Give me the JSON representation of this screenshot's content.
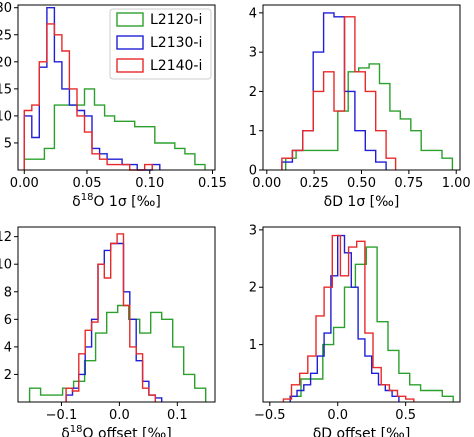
{
  "chart_data": [
    {
      "type": "histogram",
      "xlabel": "δ18O 1σ [‰]",
      "xlim": [
        -0.005,
        0.152
      ],
      "ylim": [
        0,
        30.5
      ],
      "xticks": [
        0.0,
        0.05,
        0.1,
        0.15
      ],
      "xtick_labels": [
        "0.00",
        "0.05",
        "0.10",
        "0.15"
      ],
      "yticks": [
        5,
        10,
        15,
        20,
        25,
        30
      ],
      "ytick_labels": [
        "5",
        "10",
        "15",
        "20",
        "25",
        "30"
      ],
      "legend": {
        "placement": "top-right",
        "entries": [
          "L2120-i",
          "L2130-i",
          "L2140-i"
        ]
      },
      "series": [
        {
          "name": "L2120-i",
          "color": "#2ca02c",
          "edges": [
            0.0,
            0.008,
            0.016,
            0.024,
            0.032,
            0.04,
            0.048,
            0.056,
            0.064,
            0.072,
            0.08,
            0.088,
            0.096,
            0.104,
            0.112,
            0.12,
            0.128,
            0.136,
            0.144
          ],
          "values": [
            2,
            2,
            4,
            12,
            12,
            12,
            15,
            12,
            10,
            9,
            9,
            8,
            8,
            5,
            5,
            4,
            3,
            1
          ]
        },
        {
          "name": "L2130-i",
          "color": "#1f1fd6",
          "edges": [
            0.0,
            0.006,
            0.012,
            0.018,
            0.024,
            0.03,
            0.036,
            0.042,
            0.048,
            0.054,
            0.06,
            0.066,
            0.072,
            0.078,
            0.084,
            0.09,
            0.096,
            0.102,
            0.108
          ],
          "values": [
            10,
            6,
            19,
            30,
            20,
            15,
            12,
            11,
            10,
            4,
            3,
            2,
            2,
            1,
            1,
            0,
            0,
            1
          ]
        },
        {
          "name": "L2140-i",
          "color": "#e8292a",
          "edges": [
            0.0,
            0.006,
            0.012,
            0.018,
            0.024,
            0.03,
            0.036,
            0.042,
            0.048,
            0.054,
            0.06,
            0.066,
            0.072,
            0.078,
            0.084,
            0.09,
            0.096,
            0.102
          ],
          "values": [
            11,
            12,
            20,
            27,
            25,
            22,
            15,
            10,
            7,
            3,
            2,
            1,
            1,
            1,
            0,
            0,
            1
          ]
        }
      ]
    },
    {
      "type": "histogram",
      "xlabel": "δD 1σ [‰]",
      "xlim": [
        -0.02,
        1.02
      ],
      "ylim": [
        0,
        4.2
      ],
      "xticks": [
        0.0,
        0.25,
        0.5,
        0.75,
        1.0
      ],
      "xtick_labels": [
        "0.00",
        "0.25",
        "0.50",
        "0.75",
        "1.00"
      ],
      "yticks": [
        0,
        1,
        2,
        3,
        4
      ],
      "ytick_labels": [
        "0",
        "1",
        "2",
        "3",
        "4"
      ],
      "series": [
        {
          "name": "L2120-i",
          "color": "#2ca02c",
          "edges": [
            0.1,
            0.155,
            0.21,
            0.265,
            0.32,
            0.375,
            0.43,
            0.485,
            0.54,
            0.595,
            0.65,
            0.705,
            0.76,
            0.815,
            0.87,
            0.925,
            0.98
          ],
          "values": [
            0.3,
            0.5,
            0.5,
            0.5,
            0.5,
            1.5,
            2.5,
            2.6,
            2.7,
            2.2,
            1.5,
            1.3,
            1.0,
            0.5,
            0.5,
            0.3
          ]
        },
        {
          "name": "L2130-i",
          "color": "#1f1fd6",
          "edges": [
            0.08,
            0.135,
            0.19,
            0.245,
            0.3,
            0.355,
            0.41,
            0.465,
            0.52,
            0.575,
            0.63
          ],
          "values": [
            0.2,
            0.5,
            1.0,
            3.0,
            4.0,
            3.9,
            2.0,
            1.0,
            0.5,
            0.2
          ]
        },
        {
          "name": "L2140-i",
          "color": "#e8292a",
          "edges": [
            0.08,
            0.135,
            0.19,
            0.245,
            0.3,
            0.355,
            0.41,
            0.465,
            0.52,
            0.575,
            0.63,
            0.68
          ],
          "values": [
            0.3,
            0.5,
            1.0,
            2.0,
            2.5,
            1.5,
            3.9,
            2.5,
            2.0,
            1.0,
            0.3
          ]
        }
      ]
    },
    {
      "type": "histogram",
      "xlabel": "δ18O offset [‰]",
      "xlim": [
        -0.175,
        0.165
      ],
      "ylim": [
        0,
        12.7
      ],
      "xticks": [
        -0.1,
        0.0,
        0.1
      ],
      "xtick_labels": [
        "−0.1",
        "0.0",
        "0.1"
      ],
      "yticks": [
        2,
        4,
        6,
        8,
        10,
        12
      ],
      "ytick_labels": [
        "2",
        "4",
        "6",
        "8",
        "10",
        "12"
      ],
      "series": [
        {
          "name": "L2120-i",
          "color": "#2ca02c",
          "edges": [
            -0.155,
            -0.136,
            -0.117,
            -0.098,
            -0.079,
            -0.06,
            -0.041,
            -0.022,
            -0.003,
            0.016,
            0.035,
            0.054,
            0.073,
            0.092,
            0.111,
            0.13,
            0.149
          ],
          "values": [
            1,
            0.5,
            0.5,
            1,
            1.5,
            3,
            5,
            6.5,
            7,
            6,
            5,
            6.5,
            6,
            4,
            2,
            1
          ]
        },
        {
          "name": "L2130-i",
          "color": "#1f1fd6",
          "edges": [
            -0.092,
            -0.081,
            -0.07,
            -0.059,
            -0.048,
            -0.037,
            -0.026,
            -0.015,
            -0.004,
            0.007,
            0.018,
            0.029,
            0.04,
            0.051,
            0.062,
            0.073
          ],
          "values": [
            0.5,
            1,
            2,
            4,
            6,
            10,
            11,
            11.5,
            11.5,
            8,
            6,
            3,
            1.5,
            0.5,
            0.3
          ]
        },
        {
          "name": "L2140-i",
          "color": "#e8292a",
          "edges": [
            -0.092,
            -0.081,
            -0.07,
            -0.059,
            -0.048,
            -0.037,
            -0.026,
            -0.015,
            -0.004,
            0.007,
            0.018,
            0.029,
            0.04,
            0.051,
            0.062
          ],
          "values": [
            1,
            0.8,
            3.5,
            5.2,
            5.8,
            10,
            9,
            11.5,
            12.2,
            7,
            4,
            3.5,
            1,
            0.5
          ]
        }
      ]
    },
    {
      "type": "histogram",
      "xlabel": "δD offset [‰]",
      "xlim": [
        -0.55,
        0.9
      ],
      "ylim": [
        0,
        3.05
      ],
      "xticks": [
        -0.5,
        0.0,
        0.5
      ],
      "xtick_labels": [
        "−0.5",
        "0.0",
        "0.5"
      ],
      "yticks": [
        1,
        2,
        3
      ],
      "ytick_labels": [
        "1",
        "2",
        "3"
      ],
      "series": [
        {
          "name": "L2120-i",
          "color": "#2ca02c",
          "edges": [
            -0.35,
            -0.27,
            -0.19,
            -0.11,
            -0.03,
            0.05,
            0.13,
            0.21,
            0.29,
            0.37,
            0.45,
            0.53,
            0.61,
            0.69,
            0.77,
            0.85
          ],
          "values": [
            0.1,
            0.4,
            0.4,
            1.0,
            1.3,
            2.0,
            2.4,
            2.7,
            1.4,
            0.9,
            0.5,
            0.3,
            0.2,
            0.2,
            0.1
          ]
        },
        {
          "name": "L2130-i",
          "color": "#1f1fd6",
          "edges": [
            -0.35,
            -0.3,
            -0.25,
            -0.2,
            -0.15,
            -0.1,
            -0.05,
            0.0,
            0.05,
            0.1,
            0.15,
            0.2,
            0.25,
            0.3,
            0.35,
            0.4,
            0.45
          ],
          "values": [
            0.1,
            0.2,
            0.3,
            0.5,
            0.8,
            1.2,
            2.2,
            2.9,
            2.6,
            2.0,
            1.1,
            0.8,
            0.5,
            0.3,
            0.2,
            0.1
          ]
        },
        {
          "name": "L2140-i",
          "color": "#e8292a",
          "edges": [
            -0.4,
            -0.34,
            -0.28,
            -0.22,
            -0.16,
            -0.1,
            -0.04,
            0.02,
            0.08,
            0.14,
            0.2,
            0.26,
            0.32,
            0.38,
            0.44,
            0.5,
            0.56
          ],
          "values": [
            0.05,
            0.3,
            0.5,
            0.8,
            1.5,
            2.0,
            2.9,
            2.2,
            2.7,
            2.8,
            1.2,
            0.6,
            0.3,
            0.2,
            0.1,
            0.05
          ]
        }
      ]
    }
  ]
}
